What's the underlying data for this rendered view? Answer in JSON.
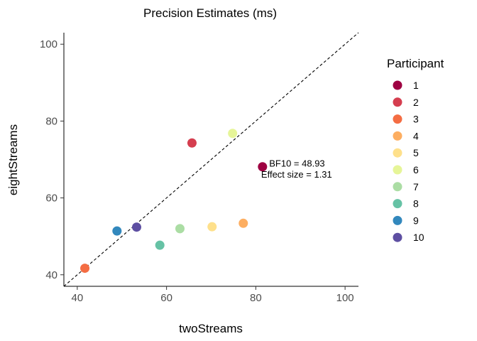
{
  "chart_data": {
    "type": "scatter",
    "title": "Precision Estimates (ms)",
    "xlabel": "twoStreams",
    "ylabel": "eightStreams",
    "xlim": [
      37,
      103
    ],
    "ylim": [
      37,
      103
    ],
    "x_ticks": [
      40,
      60,
      80,
      100
    ],
    "y_ticks": [
      40,
      60,
      80,
      100
    ],
    "grid": false,
    "reference_line": "identity (y = x), dashed",
    "legend": {
      "title": "Participant",
      "placement": "right",
      "entries": [
        {
          "label": "1",
          "color": "#9E0142"
        },
        {
          "label": "2",
          "color": "#D53E4F"
        },
        {
          "label": "3",
          "color": "#F46D43"
        },
        {
          "label": "4",
          "color": "#FDAE61"
        },
        {
          "label": "5",
          "color": "#FEE08B"
        },
        {
          "label": "6",
          "color": "#E6F598"
        },
        {
          "label": "7",
          "color": "#ABDDA4"
        },
        {
          "label": "8",
          "color": "#66C2A5"
        },
        {
          "label": "9",
          "color": "#3288BD"
        },
        {
          "label": "10",
          "color": "#5E4FA2"
        }
      ]
    },
    "points": [
      {
        "participant": "1",
        "x": 81.5,
        "y": 68.1
      },
      {
        "participant": "2",
        "x": 65.7,
        "y": 74.3
      },
      {
        "participant": "3",
        "x": 41.7,
        "y": 41.7
      },
      {
        "participant": "4",
        "x": 77.2,
        "y": 53.4
      },
      {
        "participant": "5",
        "x": 70.2,
        "y": 52.5
      },
      {
        "participant": "6",
        "x": 74.8,
        "y": 76.8
      },
      {
        "participant": "7",
        "x": 63.0,
        "y": 52.0
      },
      {
        "participant": "8",
        "x": 58.5,
        "y": 47.7
      },
      {
        "participant": "9",
        "x": 48.9,
        "y": 51.4
      },
      {
        "participant": "10",
        "x": 53.3,
        "y": 52.4
      }
    ],
    "annotations": [
      {
        "text": "BF10 = 48.93",
        "x": 83,
        "y": 68.9
      },
      {
        "text": "Effect size = 1.31",
        "x": 81.2,
        "y": 66.0
      }
    ]
  }
}
